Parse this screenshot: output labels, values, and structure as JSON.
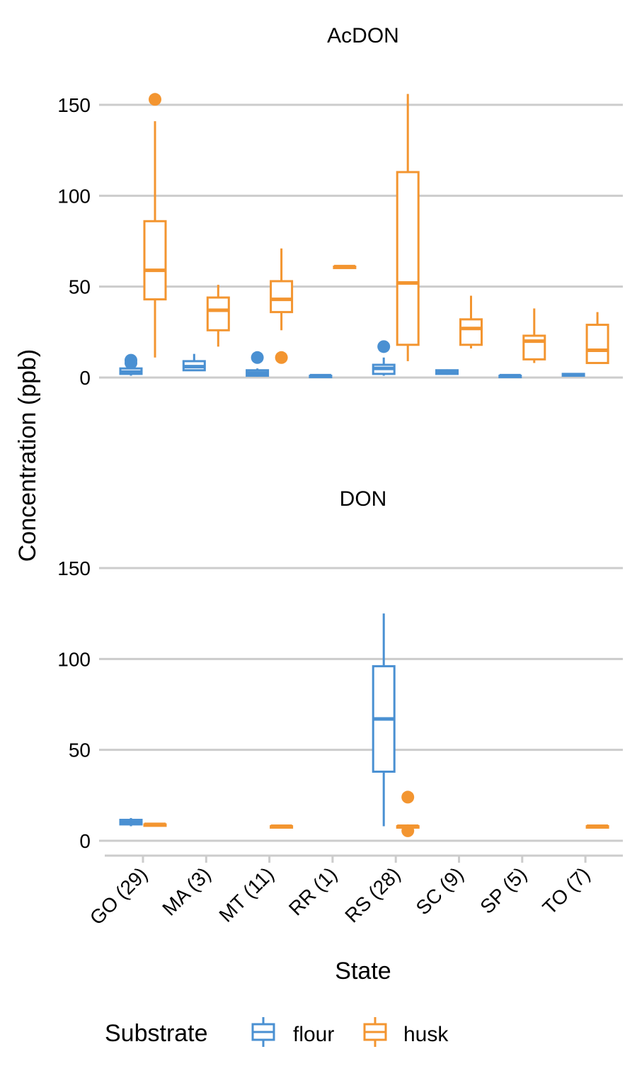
{
  "chart_data": {
    "type": "boxplot",
    "xlabel": "State",
    "ylabel": "Concentration (ppb)",
    "ylim": [
      -8,
      165
    ],
    "y_ticks": [
      0,
      50,
      100,
      150
    ],
    "categories": [
      "GO (29)",
      "MA (3)",
      "MT (11)",
      "RR (1)",
      "RS (28)",
      "SC (9)",
      "SP (5)",
      "TO (7)"
    ],
    "grid": "horizontal",
    "legend": {
      "title": "Substrate",
      "position": "bottom",
      "entries": [
        {
          "name": "flour",
          "color": "#4a90d2"
        },
        {
          "name": "husk",
          "color": "#f39530"
        }
      ]
    },
    "panels": [
      {
        "title": "AcDON",
        "series": [
          {
            "name": "flour",
            "boxes": [
              {
                "category": "GO (29)",
                "min": 1,
                "q1": 2,
                "median": 3,
                "q3": 5,
                "max": 6,
                "outliers": [
                  8,
                  9.5
                ]
              },
              {
                "category": "MA (3)",
                "min": 4,
                "q1": 4,
                "median": 6,
                "q3": 9,
                "max": 13,
                "outliers": []
              },
              {
                "category": "MT (11)",
                "min": 0.5,
                "q1": 1,
                "median": 2.5,
                "q3": 4,
                "max": 5,
                "outliers": [
                  11
                ]
              },
              {
                "category": "RR (1)",
                "min": 1,
                "q1": 1,
                "median": 1,
                "q3": 1,
                "max": 1,
                "outliers": []
              },
              {
                "category": "RS (28)",
                "min": 1,
                "q1": 2,
                "median": 5,
                "q3": 7,
                "max": 11,
                "outliers": [
                  17
                ]
              },
              {
                "category": "SC (9)",
                "min": 1.5,
                "q1": 2,
                "median": 3,
                "q3": 4,
                "max": 4.5,
                "outliers": []
              },
              {
                "category": "SP (5)",
                "min": 0.5,
                "q1": 0.5,
                "median": 1,
                "q3": 1,
                "max": 1,
                "outliers": []
              },
              {
                "category": "TO (7)",
                "min": 1,
                "q1": 1,
                "median": 1.5,
                "q3": 2,
                "max": 2,
                "outliers": []
              }
            ]
          },
          {
            "name": "husk",
            "boxes": [
              {
                "category": "GO (29)",
                "min": 11,
                "q1": 43,
                "median": 59,
                "q3": 86,
                "max": 141,
                "outliers": [
                  153
                ]
              },
              {
                "category": "MA (3)",
                "min": 17,
                "q1": 26,
                "median": 37,
                "q3": 44,
                "max": 51,
                "outliers": []
              },
              {
                "category": "MT (11)",
                "min": 26,
                "q1": 36,
                "median": 43,
                "q3": 53,
                "max": 71,
                "outliers": [
                  11
                ]
              },
              {
                "category": "RR (1)",
                "min": 61,
                "q1": 61,
                "median": 61,
                "q3": 61,
                "max": 61,
                "outliers": []
              },
              {
                "category": "RS (28)",
                "min": 9,
                "q1": 18,
                "median": 52,
                "q3": 113,
                "max": 156,
                "outliers": []
              },
              {
                "category": "SC (9)",
                "min": 16,
                "q1": 18,
                "median": 27,
                "q3": 32,
                "max": 45,
                "outliers": []
              },
              {
                "category": "SP (5)",
                "min": 8,
                "q1": 10,
                "median": 20,
                "q3": 23,
                "max": 38,
                "outliers": []
              },
              {
                "category": "TO (7)",
                "min": 8,
                "q1": 8,
                "median": 15,
                "q3": 29,
                "max": 36,
                "outliers": []
              }
            ]
          }
        ]
      },
      {
        "title": "DON",
        "series": [
          {
            "name": "flour",
            "boxes": [
              {
                "category": "GO (29)",
                "min": 8,
                "q1": 9,
                "median": 10,
                "q3": 11.5,
                "max": 12.5,
                "outliers": []
              },
              {
                "category": "RS (28)",
                "min": 8,
                "q1": 38,
                "median": 67,
                "q3": 96,
                "max": 125,
                "outliers": []
              }
            ]
          },
          {
            "name": "husk",
            "boxes": [
              {
                "category": "GO (29)",
                "min": 9,
                "q1": 9,
                "median": 9,
                "q3": 9,
                "max": 9,
                "outliers": []
              },
              {
                "category": "MT (11)",
                "min": 8,
                "q1": 8,
                "median": 8,
                "q3": 8,
                "max": 8,
                "outliers": []
              },
              {
                "category": "RS (28)",
                "min": 8,
                "q1": 8,
                "median": 8,
                "q3": 8,
                "max": 8,
                "outliers": [
                  24,
                  5.5
                ]
              },
              {
                "category": "TO (7)",
                "min": 8,
                "q1": 8,
                "median": 8,
                "q3": 8,
                "max": 8,
                "outliers": []
              }
            ]
          }
        ]
      }
    ]
  }
}
